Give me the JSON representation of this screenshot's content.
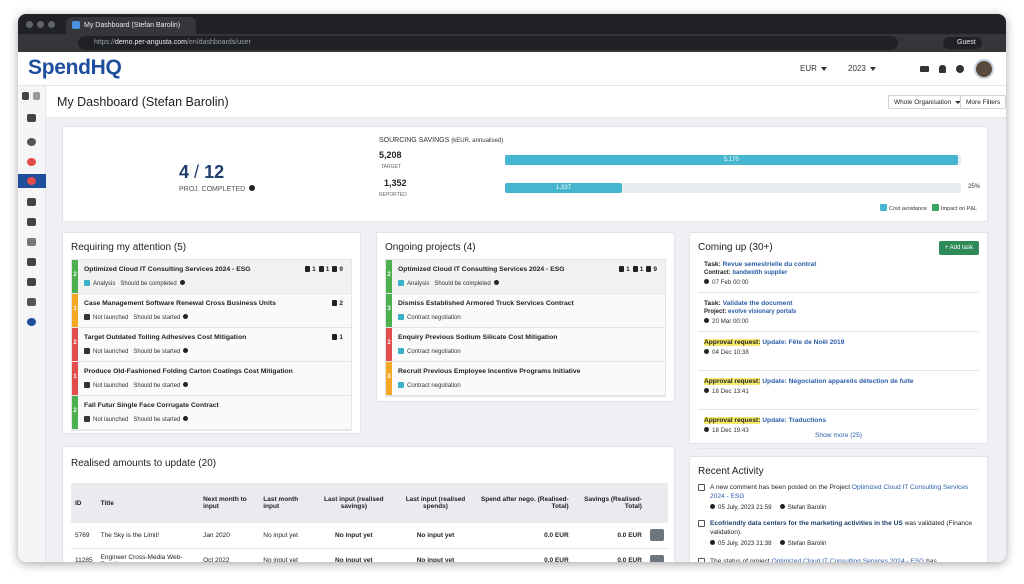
{
  "browser": {
    "tab_title": "My Dashboard (Stefan Barolin)",
    "url_scheme": "https://",
    "url_host": "demo.per-angusta.com",
    "url_path": "/en/dashboards/user",
    "profile": "Guest"
  },
  "header": {
    "logo": "SpendHQ",
    "currency": "EUR",
    "year": "2023"
  },
  "page": {
    "title": "My Dashboard (Stefan Barolin)",
    "scope": "Whole Organisation",
    "filters": "More Filters"
  },
  "summary": {
    "completed": 4,
    "separator": "/",
    "total": 12,
    "label": "PROJ. COMPLETED"
  },
  "savings": {
    "title": "SOURCING SAVINGS",
    "unit": "(kEUR, annualised)",
    "target": {
      "value": 5208,
      "label": "5,208"
    },
    "target_label": "TARGET",
    "target_bar": {
      "value": 5170,
      "label": "5,170"
    },
    "reported": {
      "value": 1352,
      "label": "1,352"
    },
    "reported_label": "REPORTED",
    "reported_bar": {
      "value": 1337,
      "label": "1,337"
    },
    "percent": "25%",
    "legend": [
      {
        "name": "Cost avoidance",
        "color": "#45b5d0"
      },
      {
        "name": "Impact on P&L",
        "color": "#3aa35f"
      }
    ]
  },
  "attention": {
    "title": "Requiring my attention (5)",
    "items": [
      {
        "priority": "2",
        "color": "#4caf50",
        "title": "Optimized Cloud IT Consulting Services 2024 - ESG",
        "counts": [
          "1",
          "1",
          "9"
        ],
        "status": "Analysis",
        "status_color": "#3bb0c9",
        "next": "Should be completed"
      },
      {
        "priority": "1",
        "color": "#f5a623",
        "title": "Case Management Software Renewal Cross Business Units",
        "counts": [
          "2"
        ],
        "status": "Not launched",
        "status_color": "#333333",
        "next": "Should be started"
      },
      {
        "priority": "2",
        "color": "#e24c4b",
        "title": "Target Outdated Tolling Adhesives Cost Mitigation",
        "counts": [
          "1"
        ],
        "status": "Not launched",
        "status_color": "#333333",
        "next": "Should be started"
      },
      {
        "priority": "1",
        "color": "#e24c4b",
        "title": "Produce Old-Fashioned Folding Carton Coatings Cost Mitigation",
        "status": "Not launched",
        "status_color": "#333333",
        "next": "Should be started"
      },
      {
        "priority": "2",
        "color": "#4caf50",
        "title": "Fall Futur Single Face Corrugate Contract",
        "status": "Not launched",
        "status_color": "#333333",
        "next": "Should be started"
      }
    ]
  },
  "ongoing": {
    "title": "Ongoing projects (4)",
    "items": [
      {
        "priority": "2",
        "color": "#4caf50",
        "title": "Optimized Cloud IT Consulting Services 2024 - ESG",
        "counts": [
          "1",
          "1",
          "9"
        ],
        "status": "Analysis",
        "status_color": "#3bb0c9",
        "next": "Should be completed"
      },
      {
        "priority": "3",
        "color": "#4caf50",
        "title": "Dismiss Established Armored Truck Services Contract",
        "status": "Contract negotiation",
        "status_color": "#3bb0c9"
      },
      {
        "priority": "2",
        "color": "#e24c4b",
        "title": "Enquiry Previous Sodium Silicate Cost Mitigation",
        "status": "Contract negotiation",
        "status_color": "#3bb0c9"
      },
      {
        "priority": "3",
        "color": "#f5a623",
        "title": "Recruit Previous Employee Incentive Programs Initiative",
        "status": "Contract negotiation",
        "status_color": "#3bb0c9"
      }
    ]
  },
  "coming_up": {
    "title": "Coming up (30+)",
    "add_button": "+ Add task",
    "show_more": "Show more (25)",
    "items": [
      {
        "kind": "Task:",
        "title": "Revue semestrielle du contrat",
        "context_label": "Contract:",
        "context": "bandwidth supplier",
        "date": "07 Feb 00:00",
        "highlight": false
      },
      {
        "kind": "Task:",
        "title": "Validate the document",
        "context_label": "Project:",
        "context": "evolve visionary portals",
        "date": "20 Mar 00:00",
        "highlight": false
      },
      {
        "kind": "Approval request:",
        "title": "Update: Fête de Noël 2019",
        "date": "04 Dec 10:38",
        "highlight": true
      },
      {
        "kind": "Approval request:",
        "title": "Update: Négociation appareils détection de fuite",
        "date": "18 Dec 13:41",
        "highlight": true
      },
      {
        "kind": "Approval request:",
        "title": "Update: Traductions",
        "date": "18 Dec 19:43",
        "highlight": true
      }
    ]
  },
  "realised": {
    "title": "Realised amounts to update (20)",
    "columns": [
      "ID",
      "Title",
      "Next month to input",
      "Last month input",
      "Last input (realised savings)",
      "Last input (realised spends)",
      "Spend after nego. (Realised-Total)",
      "Savings (Realised-Total)"
    ],
    "rows": [
      [
        "5769",
        "The Sky is the Limit!",
        "Jan 2020",
        "No input yet",
        "No input yet",
        "No input yet",
        "0.0 EUR",
        "0.0 EUR"
      ],
      [
        "11285",
        "Engineer Cross-Media Web-Readiness",
        "Oct 2022",
        "No input yet",
        "No input yet",
        "No input yet",
        "0.0 EUR",
        "0.0 EUR"
      ]
    ]
  },
  "activity": {
    "title": "Recent Activity",
    "items": [
      {
        "parts": [
          {
            "text": "A ",
            "style": "plain"
          },
          {
            "text": "new comment",
            "style": "highlight"
          },
          {
            "text": " has been posted on the Project ",
            "style": "plain"
          },
          {
            "text": "Optimized Cloud IT Consulting Services 2024 - ESG",
            "style": "link"
          }
        ],
        "date": "05 July, 2023 21:59",
        "user": "Stefan Barolin"
      },
      {
        "parts": [
          {
            "text": "Ecofriendly data centers for the marketing activities in the US",
            "style": "strong"
          },
          {
            "text": " was ",
            "style": "plain"
          },
          {
            "text": "validated",
            "style": "highlight"
          },
          {
            "text": " (Finance validation).",
            "style": "plain"
          }
        ],
        "date": "05 July, 2023 21:38",
        "user": "Stefan Barolin"
      },
      {
        "parts": [
          {
            "text": "The status of project ",
            "style": "plain"
          },
          {
            "text": "Optimized Cloud IT Consulting Services 2024 - ESG",
            "style": "link"
          },
          {
            "text": " has",
            "style": "plain"
          }
        ]
      }
    ]
  }
}
